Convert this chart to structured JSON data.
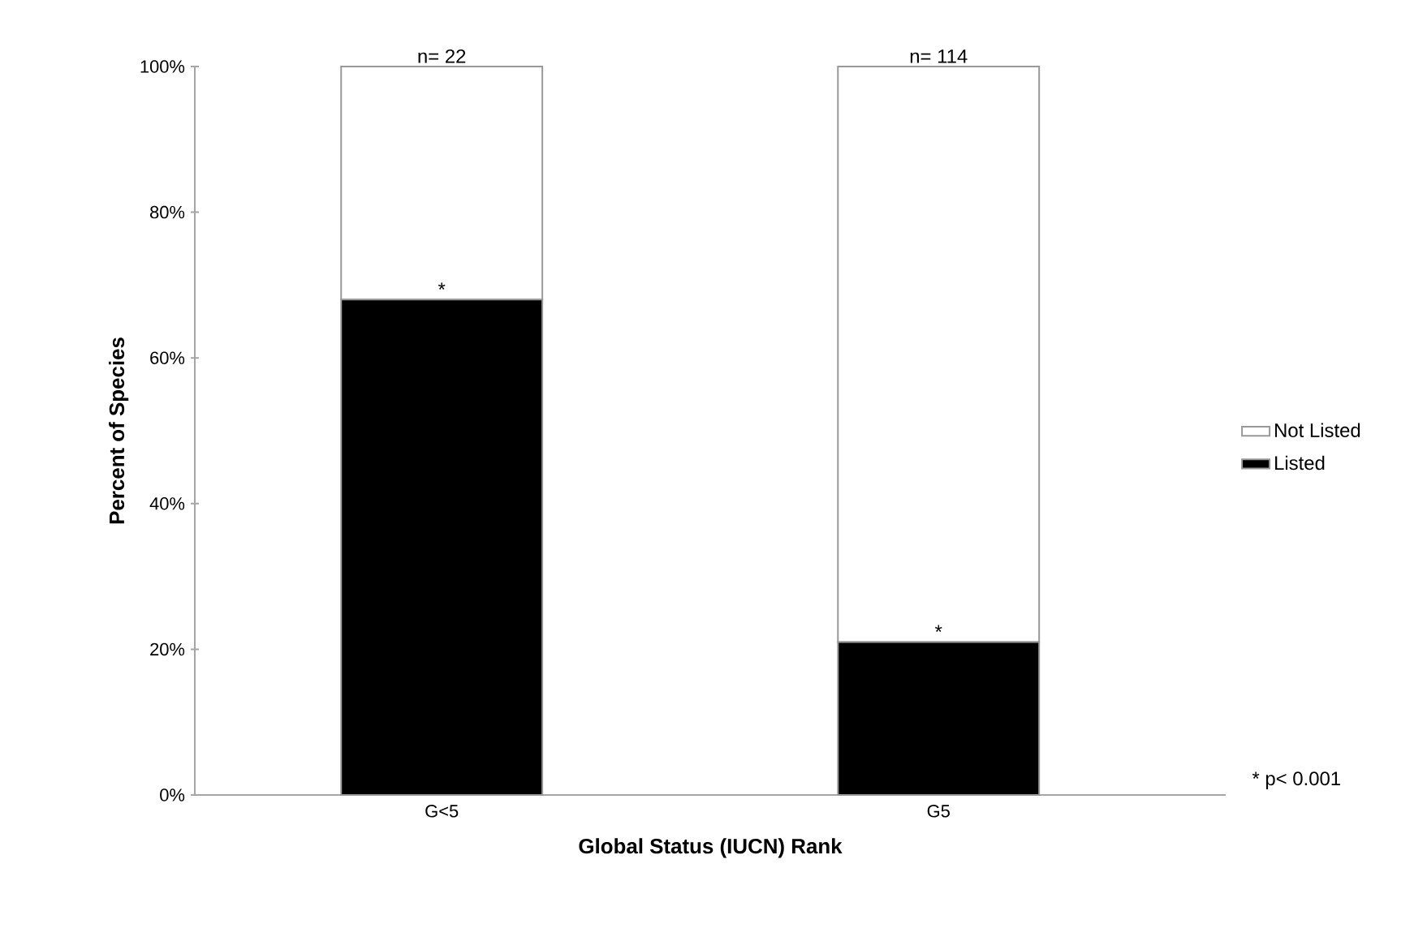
{
  "chart_data": {
    "type": "bar",
    "stacked": true,
    "xlabel": "Global Status (IUCN) Rank",
    "ylabel": "Percent of Species",
    "categories": [
      "G<5",
      "G5"
    ],
    "series": [
      {
        "name": "Listed",
        "color": "#000000",
        "values": [
          68,
          21
        ]
      },
      {
        "name": "Not Listed",
        "color": "#ffffff",
        "values": [
          32,
          79
        ]
      }
    ],
    "ylim": [
      0,
      100
    ],
    "yticks": [
      {
        "value": 0,
        "label": "0%"
      },
      {
        "value": 20,
        "label": "20%"
      },
      {
        "value": 40,
        "label": "40%"
      },
      {
        "value": 60,
        "label": "60%"
      },
      {
        "value": 80,
        "label": "80%"
      },
      {
        "value": 100,
        "label": "100%"
      }
    ],
    "legend": "right",
    "annotations": [
      {
        "text": "n= 22",
        "x": "G<5",
        "y": 100
      },
      {
        "text": "n= 114",
        "x": "G5",
        "y": 100
      },
      {
        "text": "*",
        "x": "G<5",
        "y": 68
      },
      {
        "text": "*",
        "x": "G5",
        "y": 21
      },
      "* p< 0.001"
    ]
  }
}
